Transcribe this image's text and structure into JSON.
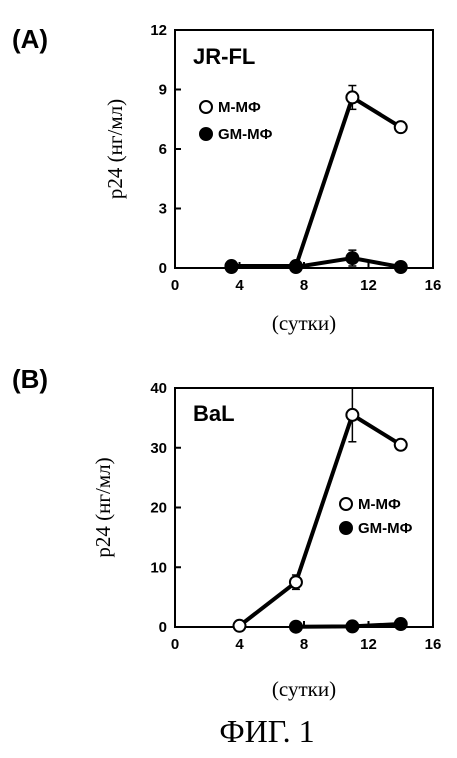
{
  "figure_caption": "ФИГ. 1",
  "chart_data": [
    {
      "panel_label": "(A)",
      "type": "line",
      "title": "JR-FL",
      "ylabel": "p24 (нг/мл)",
      "xlabel": "(сутки)",
      "xlim": [
        0,
        16
      ],
      "ylim": [
        0,
        12
      ],
      "xticks": [
        "0",
        "4",
        "8",
        "12",
        "16"
      ],
      "yticks": [
        "0",
        "3",
        "6",
        "9",
        "12"
      ],
      "legend_position": "right-middle",
      "series": [
        {
          "name": "M-MФ",
          "marker": "open-circle",
          "x": [
            3.5,
            7.5,
            11,
            14
          ],
          "y": [
            0.1,
            0.1,
            8.6,
            7.1
          ],
          "err": [
            0,
            0,
            0.6,
            0
          ]
        },
        {
          "name": "GM-MФ",
          "marker": "filled-circle",
          "x": [
            3.5,
            7.5,
            11,
            14
          ],
          "y": [
            0.05,
            0.05,
            0.5,
            0.05
          ],
          "err": [
            0,
            0,
            0.4,
            0
          ]
        }
      ]
    },
    {
      "panel_label": "(B)",
      "type": "line",
      "title": "BaL",
      "ylabel": "p24 (нг/мл)",
      "xlabel": "(сутки)",
      "xlim": [
        0,
        16
      ],
      "ylim": [
        0,
        40
      ],
      "xticks": [
        "0",
        "4",
        "8",
        "12",
        "16"
      ],
      "yticks": [
        "0",
        "10",
        "20",
        "30",
        "40"
      ],
      "legend_position": "right-middle",
      "series": [
        {
          "name": "M-MФ",
          "marker": "open-circle",
          "x": [
            4,
            7.5,
            11,
            14
          ],
          "y": [
            0.2,
            7.5,
            35.5,
            30.5
          ],
          "err": [
            0,
            1.2,
            4.5,
            0
          ]
        },
        {
          "name": "GM-MФ",
          "marker": "filled-circle",
          "x": [
            7.5,
            11,
            14
          ],
          "y": [
            0.05,
            0.1,
            0.5
          ],
          "err": [
            0,
            0,
            0
          ]
        }
      ]
    }
  ]
}
